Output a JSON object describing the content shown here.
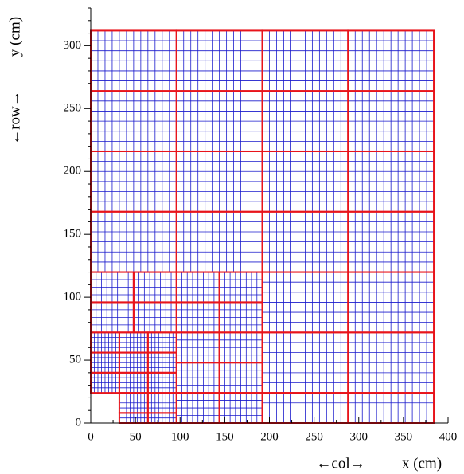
{
  "chart_data": {
    "type": "mesh",
    "xlabel_note": "←col→",
    "xlabel": "x (cm)",
    "ylabel_note": "←row→",
    "ylabel": "y (cm)",
    "xlim": [
      0,
      400
    ],
    "ylim": [
      0,
      330
    ],
    "xticks": [
      0,
      50,
      100,
      150,
      200,
      250,
      300,
      350,
      400
    ],
    "yticks": [
      0,
      50,
      100,
      150,
      200,
      250,
      300
    ],
    "outline_color": "#e8141b",
    "grid_color": "#1a1acc",
    "blocks": [
      [
        0,
        264,
        96,
        312,
        8
      ],
      [
        96,
        264,
        192,
        312,
        8
      ],
      [
        192,
        264,
        288,
        312,
        8
      ],
      [
        288,
        264,
        384,
        312,
        8
      ],
      [
        0,
        216,
        96,
        264,
        8
      ],
      [
        96,
        216,
        192,
        264,
        8
      ],
      [
        192,
        216,
        288,
        264,
        8
      ],
      [
        288,
        216,
        384,
        264,
        8
      ],
      [
        0,
        168,
        96,
        216,
        8
      ],
      [
        96,
        168,
        192,
        216,
        8
      ],
      [
        192,
        168,
        288,
        216,
        8
      ],
      [
        288,
        168,
        384,
        216,
        8
      ],
      [
        0,
        120,
        96,
        168,
        8
      ],
      [
        96,
        120,
        192,
        168,
        8
      ],
      [
        192,
        120,
        288,
        168,
        8
      ],
      [
        288,
        120,
        384,
        168,
        8
      ],
      [
        192,
        72,
        288,
        120,
        8
      ],
      [
        288,
        72,
        384,
        120,
        8
      ],
      [
        192,
        24,
        288,
        72,
        8
      ],
      [
        288,
        24,
        384,
        72,
        8
      ],
      [
        192,
        0,
        288,
        24,
        8
      ],
      [
        288,
        0,
        384,
        24,
        8
      ],
      [
        0,
        96,
        48,
        120,
        6
      ],
      [
        48,
        96,
        96,
        120,
        6
      ],
      [
        0,
        72,
        48,
        96,
        6
      ],
      [
        48,
        72,
        96,
        96,
        6
      ],
      [
        96,
        96,
        144,
        120,
        6
      ],
      [
        144,
        96,
        192,
        120,
        6
      ],
      [
        96,
        72,
        144,
        96,
        6
      ],
      [
        144,
        72,
        192,
        96,
        6
      ],
      [
        96,
        48,
        144,
        72,
        6
      ],
      [
        144,
        48,
        192,
        72,
        6
      ],
      [
        96,
        24,
        144,
        48,
        6
      ],
      [
        144,
        24,
        192,
        48,
        6
      ],
      [
        96,
        0,
        144,
        24,
        6
      ],
      [
        144,
        0,
        192,
        24,
        6
      ],
      [
        0,
        56,
        32,
        72,
        4
      ],
      [
        32,
        56,
        64,
        72,
        4
      ],
      [
        64,
        56,
        96,
        72,
        4
      ],
      [
        0,
        40,
        32,
        56,
        4
      ],
      [
        32,
        40,
        64,
        56,
        4
      ],
      [
        64,
        40,
        96,
        56,
        4
      ],
      [
        0,
        24,
        32,
        40,
        4
      ],
      [
        32,
        24,
        64,
        40,
        4
      ],
      [
        64,
        24,
        96,
        40,
        4
      ],
      [
        32,
        8,
        64,
        24,
        4
      ],
      [
        64,
        8,
        96,
        24,
        4
      ],
      [
        32,
        0,
        64,
        8,
        4
      ],
      [
        64,
        0,
        96,
        8,
        4
      ]
    ]
  }
}
